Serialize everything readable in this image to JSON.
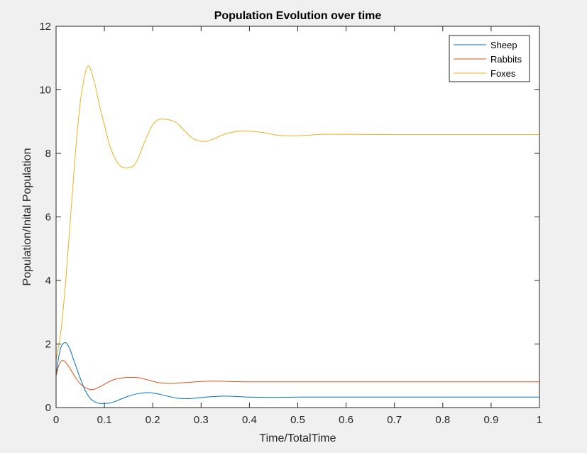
{
  "chart_data": {
    "type": "line",
    "title": "Population Evolution over time",
    "xlabel": "Time/TotalTime",
    "ylabel": "Population/Inital Population",
    "xlim": [
      0,
      1
    ],
    "ylim": [
      0,
      12
    ],
    "xticks": [
      0,
      0.1,
      0.2,
      0.3,
      0.4,
      0.5,
      0.6,
      0.7,
      0.8,
      0.9,
      1
    ],
    "xtick_labels": [
      "0",
      "0.1",
      "0.2",
      "0.3",
      "0.4",
      "0.5",
      "0.6",
      "0.7",
      "0.8",
      "0.9",
      "1"
    ],
    "yticks": [
      0,
      2,
      4,
      6,
      8,
      10,
      12
    ],
    "ytick_labels": [
      "0",
      "2",
      "4",
      "6",
      "8",
      "10",
      "12"
    ],
    "grid": false,
    "legend_position": "top-right",
    "series": [
      {
        "name": "Sheep",
        "color": "#0072BD",
        "x": [
          0,
          0.005,
          0.01,
          0.015,
          0.02,
          0.025,
          0.03,
          0.04,
          0.05,
          0.06,
          0.07,
          0.08,
          0.09,
          0.1,
          0.11,
          0.12,
          0.13,
          0.15,
          0.17,
          0.19,
          0.21,
          0.23,
          0.25,
          0.27,
          0.29,
          0.31,
          0.33,
          0.35,
          0.37,
          0.4,
          0.43,
          0.46,
          0.5,
          0.55,
          0.6,
          0.7,
          0.8,
          0.9,
          1.0
        ],
        "y": [
          1.0,
          1.55,
          1.9,
          2.02,
          2.04,
          1.95,
          1.78,
          1.35,
          0.92,
          0.55,
          0.3,
          0.18,
          0.13,
          0.13,
          0.14,
          0.18,
          0.24,
          0.36,
          0.44,
          0.47,
          0.43,
          0.36,
          0.3,
          0.28,
          0.3,
          0.33,
          0.35,
          0.36,
          0.35,
          0.33,
          0.32,
          0.32,
          0.33,
          0.33,
          0.33,
          0.33,
          0.33,
          0.33,
          0.33
        ]
      },
      {
        "name": "Rabbits",
        "color": "#D95319",
        "x": [
          0,
          0.005,
          0.01,
          0.015,
          0.02,
          0.03,
          0.04,
          0.05,
          0.06,
          0.07,
          0.08,
          0.09,
          0.1,
          0.11,
          0.12,
          0.13,
          0.14,
          0.15,
          0.16,
          0.17,
          0.18,
          0.19,
          0.2,
          0.21,
          0.22,
          0.23,
          0.24,
          0.26,
          0.28,
          0.3,
          0.32,
          0.34,
          0.36,
          0.4,
          0.45,
          0.5,
          0.6,
          0.8,
          1.0
        ],
        "y": [
          1.0,
          1.3,
          1.45,
          1.48,
          1.42,
          1.2,
          0.95,
          0.75,
          0.63,
          0.57,
          0.58,
          0.65,
          0.73,
          0.82,
          0.88,
          0.92,
          0.94,
          0.95,
          0.95,
          0.94,
          0.91,
          0.87,
          0.83,
          0.79,
          0.77,
          0.76,
          0.76,
          0.78,
          0.8,
          0.82,
          0.83,
          0.83,
          0.82,
          0.81,
          0.81,
          0.81,
          0.81,
          0.81,
          0.81
        ]
      },
      {
        "name": "Foxes",
        "color": "#EDB120",
        "x": [
          0,
          0.01,
          0.02,
          0.03,
          0.04,
          0.05,
          0.06,
          0.065,
          0.07,
          0.08,
          0.09,
          0.1,
          0.11,
          0.12,
          0.13,
          0.14,
          0.15,
          0.16,
          0.17,
          0.18,
          0.19,
          0.2,
          0.21,
          0.22,
          0.235,
          0.25,
          0.26,
          0.27,
          0.28,
          0.29,
          0.3,
          0.31,
          0.32,
          0.34,
          0.36,
          0.38,
          0.4,
          0.43,
          0.46,
          0.49,
          0.52,
          0.55,
          0.6,
          0.7,
          0.8,
          0.9,
          1.0
        ],
        "y": [
          1.5,
          2.4,
          4.0,
          6.0,
          8.0,
          9.6,
          10.5,
          10.72,
          10.7,
          10.2,
          9.5,
          8.9,
          8.3,
          7.9,
          7.65,
          7.55,
          7.55,
          7.6,
          7.85,
          8.25,
          8.6,
          8.9,
          9.05,
          9.08,
          9.05,
          8.95,
          8.8,
          8.65,
          8.5,
          8.42,
          8.38,
          8.38,
          8.42,
          8.55,
          8.65,
          8.7,
          8.7,
          8.65,
          8.57,
          8.55,
          8.57,
          8.6,
          8.6,
          8.59,
          8.59,
          8.59,
          8.59
        ]
      }
    ]
  }
}
